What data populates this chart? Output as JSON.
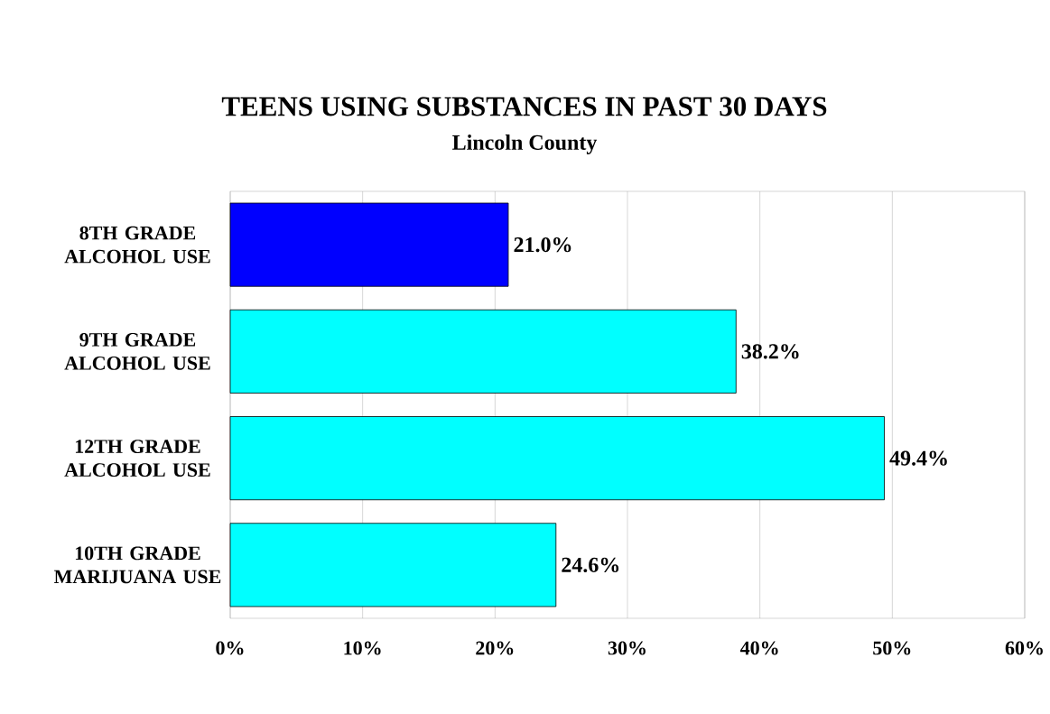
{
  "chart_data": {
    "type": "bar",
    "orientation": "horizontal",
    "title": "TEENS USING SUBSTANCES IN PAST 30 DAYS",
    "subtitle": "Lincoln County",
    "categories": [
      "8TH GRADE ALCOHOL USE",
      "9TH GRADE ALCOHOL USE",
      "12TH GRADE ALCOHOL USE",
      "10TH GRADE MARIJUANA USE"
    ],
    "values": [
      21.0,
      38.2,
      49.4,
      24.6
    ],
    "value_labels": [
      "21.0%",
      "38.2%",
      "49.4%",
      "24.6%"
    ],
    "colors": [
      "#0000ff",
      "#00ffff",
      "#00ffff",
      "#00ffff"
    ],
    "xlim": [
      0,
      60
    ],
    "xticks": [
      {
        "value": 0,
        "label": "0%"
      },
      {
        "value": 10,
        "label": "10%"
      },
      {
        "value": 20,
        "label": "20%"
      },
      {
        "value": 30,
        "label": "30%"
      },
      {
        "value": 40,
        "label": "40%"
      },
      {
        "value": 50,
        "label": "50%"
      },
      {
        "value": 60,
        "label": "60%"
      }
    ],
    "grid": "x"
  }
}
